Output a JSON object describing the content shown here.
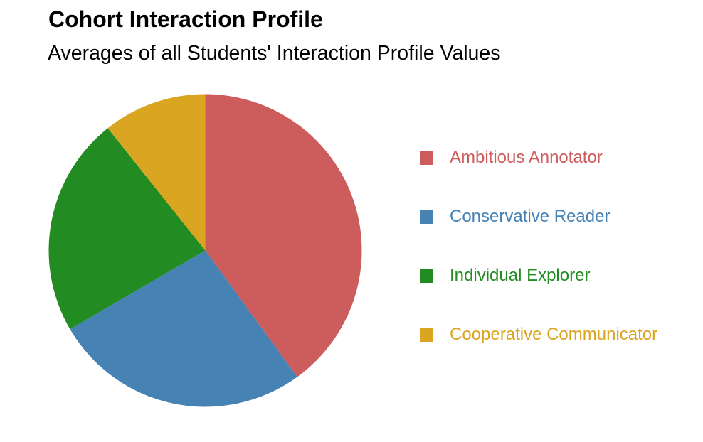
{
  "header": {
    "title": "Cohort Interaction Profile",
    "subtitle": "Averages of all Students' Interaction Profile Values"
  },
  "chart_data": {
    "type": "pie",
    "title": "Cohort Interaction Profile",
    "subtitle": "Averages of all Students' Interaction Profile Values",
    "categories": [
      "Ambitious Annotator",
      "Conservative Reader",
      "Individual Explorer",
      "Cooperative Communicator"
    ],
    "values": [
      40.0,
      26.6,
      22.7,
      10.7
    ],
    "values_unit": "percent_of_circle",
    "colors": [
      "#CD5C5C",
      "#4682B4",
      "#228B22",
      "#DAA520"
    ],
    "start_angle_deg": 0,
    "direction": "clockwise",
    "legend_position": "right",
    "background_color": "#ffffff",
    "text_color": "#000000"
  }
}
